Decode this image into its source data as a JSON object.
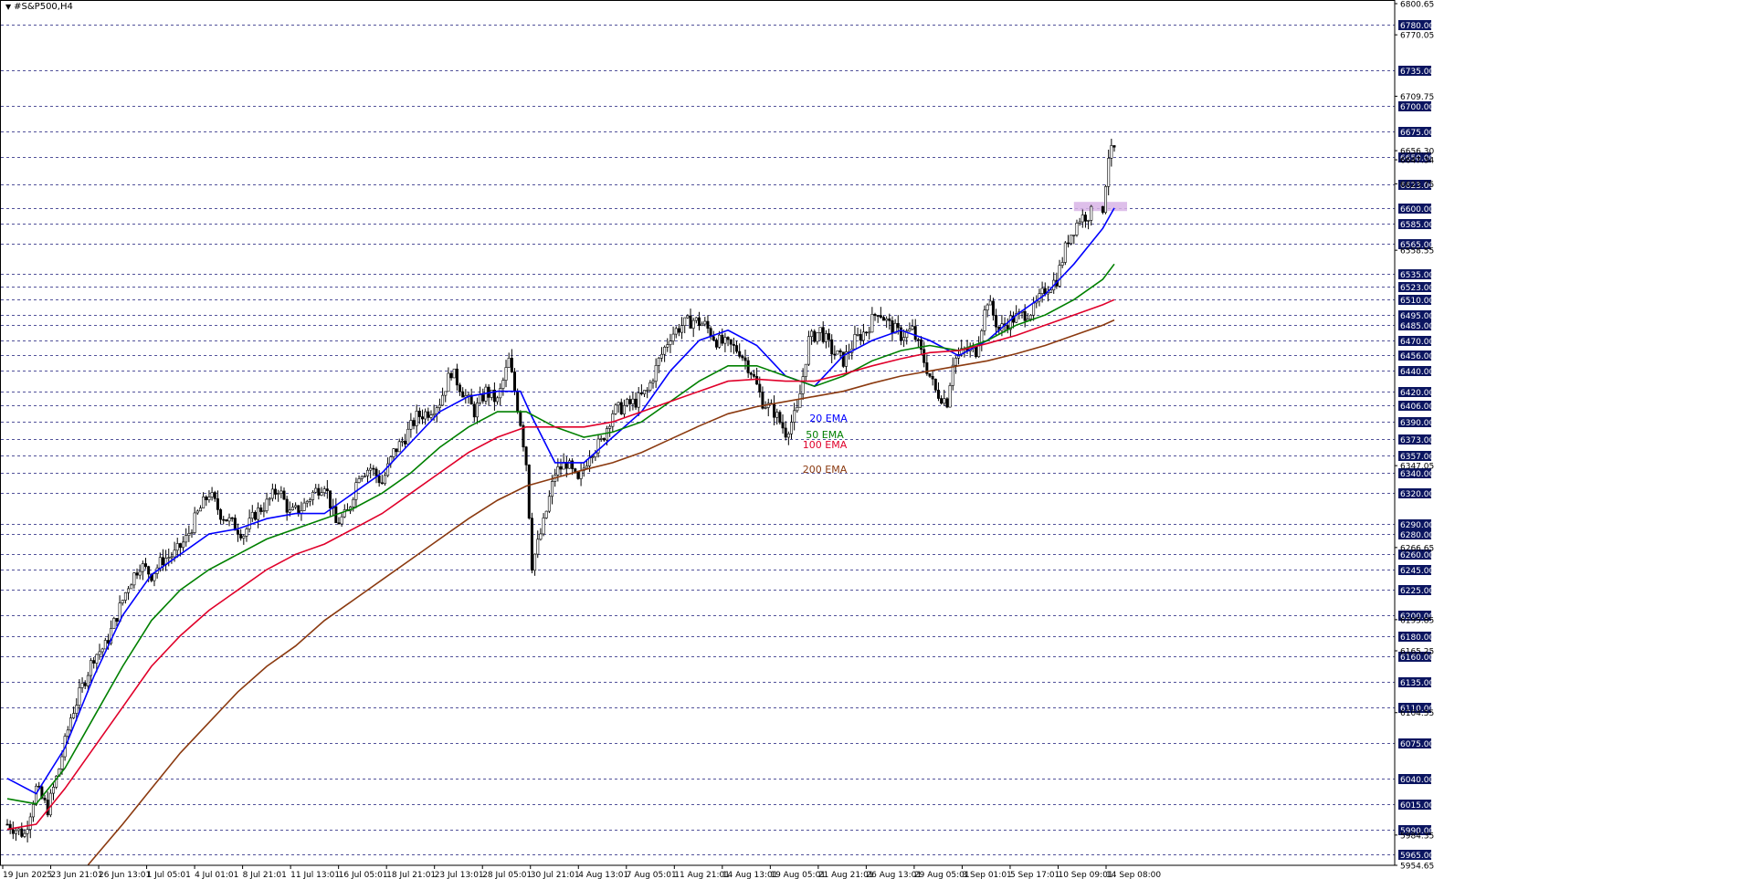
{
  "symbol": "#S&P500,H4",
  "colors": {
    "background": "#ffffff",
    "candle": "#000000",
    "grid_dashed": "#1a1a7a",
    "level_tag_bg": "#0b1560",
    "level_tag_text": "#ffffff",
    "ema20": "#0000ff",
    "ema50": "#008000",
    "ema100": "#e0002a",
    "ema200": "#8b3a10",
    "resistance_box": "#d8b4e6"
  },
  "chart_data": {
    "type": "candlestick",
    "title": "#S&P500,H4",
    "ylim": [
      5954.65,
      6800.65
    ],
    "y_axis_labels": [
      6800.65,
      6770.05,
      6709.75,
      6656.3,
      6647.34,
      6623.75,
      6558.55,
      6347.05,
      6266.65,
      6195.85,
      6165.25,
      6104.55,
      5984.35,
      5954.65
    ],
    "horizontal_levels": [
      6780,
      6735,
      6700,
      6675,
      6650,
      6623,
      6600,
      6585,
      6565,
      6535,
      6523,
      6510,
      6495,
      6485,
      6470,
      6456,
      6440,
      6420,
      6406,
      6390,
      6373,
      6357,
      6340,
      6320,
      6290,
      6280,
      6260,
      6245,
      6225,
      6200,
      6180,
      6160,
      6135,
      6110,
      6075,
      6040,
      6015,
      5990,
      5965
    ],
    "level_labels": [
      "6780.00",
      "6735.00",
      "6700.00",
      "6675.00",
      "6650.00",
      "6623.00",
      "6600.00",
      "6585.00",
      "6565.00",
      "6535.00",
      "6523.00",
      "6510.00",
      "6495.00",
      "6485.00",
      "6470.00",
      "6456.00",
      "6440.00",
      "6420.00",
      "6406.00",
      "6390.00",
      "6373.00",
      "6357.00",
      "6340.00",
      "6320.00",
      "6290.00",
      "6280.00",
      "6260.00",
      "6245.00",
      "6225.00",
      "6200.00",
      "6180.00",
      "6160.00",
      "6135.00",
      "6110.00",
      "6075.00",
      "6040.00",
      "6015.00",
      "5990.00",
      "5965.00"
    ],
    "x_tick_labels": [
      "19 Jun 2025",
      "23 Jun 21:01",
      "26 Jun 13:01",
      "1 Jul 05:01",
      "4 Jul 01:01",
      "8 Jul 21:01",
      "11 Jul 13:01",
      "16 Jul 05:01",
      "18 Jul 21:01",
      "23 Jul 13:01",
      "28 Jul 05:01",
      "30 Jul 21:01",
      "4 Aug 13:01",
      "7 Aug 05:01",
      "11 Aug 21:01",
      "14 Aug 13:01",
      "19 Aug 05:01",
      "21 Aug 21:01",
      "26 Aug 13:01",
      "29 Aug 05:01",
      "3 Sep 01:01",
      "5 Sep 17:01",
      "10 Sep 09:01",
      "14 Sep 08:00"
    ],
    "close_path": [
      [
        0,
        5995
      ],
      [
        6,
        5985
      ],
      [
        10,
        6030
      ],
      [
        14,
        6010
      ],
      [
        18,
        6050
      ],
      [
        22,
        6100
      ],
      [
        26,
        6130
      ],
      [
        30,
        6160
      ],
      [
        34,
        6170
      ],
      [
        38,
        6200
      ],
      [
        42,
        6230
      ],
      [
        46,
        6250
      ],
      [
        50,
        6240
      ],
      [
        54,
        6255
      ],
      [
        58,
        6260
      ],
      [
        62,
        6275
      ],
      [
        66,
        6300
      ],
      [
        70,
        6320
      ],
      [
        74,
        6300
      ],
      [
        78,
        6290
      ],
      [
        82,
        6280
      ],
      [
        86,
        6300
      ],
      [
        90,
        6310
      ],
      [
        94,
        6325
      ],
      [
        98,
        6300
      ],
      [
        102,
        6305
      ],
      [
        106,
        6320
      ],
      [
        110,
        6330
      ],
      [
        114,
        6290
      ],
      [
        118,
        6300
      ],
      [
        122,
        6340
      ],
      [
        126,
        6345
      ],
      [
        130,
        6330
      ],
      [
        134,
        6360
      ],
      [
        138,
        6375
      ],
      [
        142,
        6395
      ],
      [
        146,
        6400
      ],
      [
        150,
        6410
      ],
      [
        154,
        6440
      ],
      [
        158,
        6420
      ],
      [
        162,
        6400
      ],
      [
        166,
        6420
      ],
      [
        170,
        6410
      ],
      [
        174,
        6450
      ],
      [
        178,
        6390
      ],
      [
        180,
        6350
      ],
      [
        182,
        6250
      ],
      [
        186,
        6290
      ],
      [
        190,
        6340
      ],
      [
        194,
        6350
      ],
      [
        198,
        6330
      ],
      [
        202,
        6360
      ],
      [
        206,
        6370
      ],
      [
        210,
        6400
      ],
      [
        214,
        6405
      ],
      [
        218,
        6410
      ],
      [
        222,
        6420
      ],
      [
        226,
        6450
      ],
      [
        230,
        6475
      ],
      [
        234,
        6485
      ],
      [
        238,
        6490
      ],
      [
        242,
        6485
      ],
      [
        246,
        6470
      ],
      [
        250,
        6465
      ],
      [
        254,
        6460
      ],
      [
        258,
        6440
      ],
      [
        262,
        6410
      ],
      [
        266,
        6400
      ],
      [
        270,
        6380
      ],
      [
        274,
        6400
      ],
      [
        278,
        6470
      ],
      [
        282,
        6480
      ],
      [
        286,
        6460
      ],
      [
        290,
        6450
      ],
      [
        294,
        6470
      ],
      [
        298,
        6480
      ],
      [
        302,
        6500
      ],
      [
        306,
        6485
      ],
      [
        310,
        6475
      ],
      [
        314,
        6480
      ],
      [
        318,
        6450
      ],
      [
        322,
        6420
      ],
      [
        326,
        6410
      ],
      [
        328,
        6450
      ],
      [
        332,
        6460
      ],
      [
        336,
        6460
      ],
      [
        340,
        6510
      ],
      [
        344,
        6480
      ],
      [
        348,
        6490
      ],
      [
        352,
        6495
      ],
      [
        356,
        6500
      ],
      [
        360,
        6520
      ],
      [
        364,
        6530
      ],
      [
        368,
        6570
      ],
      [
        372,
        6590
      ],
      [
        376,
        6595
      ],
      [
        378,
        6598
      ],
      [
        380,
        6600
      ],
      [
        382,
        6652
      ],
      [
        384,
        6657
      ]
    ],
    "series": [
      {
        "name": "20 EMA",
        "values": [
          [
            0,
            6040
          ],
          [
            10,
            6025
          ],
          [
            20,
            6070
          ],
          [
            30,
            6140
          ],
          [
            40,
            6200
          ],
          [
            50,
            6240
          ],
          [
            60,
            6260
          ],
          [
            70,
            6280
          ],
          [
            80,
            6285
          ],
          [
            90,
            6295
          ],
          [
            100,
            6300
          ],
          [
            110,
            6300
          ],
          [
            120,
            6320
          ],
          [
            130,
            6340
          ],
          [
            140,
            6370
          ],
          [
            150,
            6400
          ],
          [
            160,
            6415
          ],
          [
            170,
            6420
          ],
          [
            178,
            6420
          ],
          [
            182,
            6395
          ],
          [
            190,
            6350
          ],
          [
            200,
            6350
          ],
          [
            210,
            6375
          ],
          [
            220,
            6400
          ],
          [
            230,
            6440
          ],
          [
            240,
            6470
          ],
          [
            250,
            6480
          ],
          [
            260,
            6465
          ],
          [
            270,
            6435
          ],
          [
            280,
            6425
          ],
          [
            290,
            6455
          ],
          [
            300,
            6470
          ],
          [
            310,
            6480
          ],
          [
            320,
            6470
          ],
          [
            330,
            6455
          ],
          [
            340,
            6470
          ],
          [
            350,
            6495
          ],
          [
            360,
            6515
          ],
          [
            370,
            6545
          ],
          [
            380,
            6580
          ],
          [
            384,
            6600
          ]
        ]
      },
      {
        "name": "50 EMA",
        "values": [
          [
            0,
            6020
          ],
          [
            10,
            6015
          ],
          [
            20,
            6050
          ],
          [
            30,
            6100
          ],
          [
            40,
            6150
          ],
          [
            50,
            6195
          ],
          [
            60,
            6225
          ],
          [
            70,
            6245
          ],
          [
            80,
            6260
          ],
          [
            90,
            6275
          ],
          [
            100,
            6285
          ],
          [
            110,
            6295
          ],
          [
            120,
            6305
          ],
          [
            130,
            6320
          ],
          [
            140,
            6340
          ],
          [
            150,
            6365
          ],
          [
            160,
            6385
          ],
          [
            170,
            6400
          ],
          [
            180,
            6400
          ],
          [
            190,
            6385
          ],
          [
            200,
            6375
          ],
          [
            210,
            6380
          ],
          [
            220,
            6390
          ],
          [
            230,
            6410
          ],
          [
            240,
            6430
          ],
          [
            250,
            6445
          ],
          [
            260,
            6445
          ],
          [
            270,
            6435
          ],
          [
            280,
            6425
          ],
          [
            290,
            6435
          ],
          [
            300,
            6450
          ],
          [
            310,
            6460
          ],
          [
            320,
            6465
          ],
          [
            330,
            6460
          ],
          [
            340,
            6470
          ],
          [
            350,
            6485
          ],
          [
            360,
            6495
          ],
          [
            370,
            6510
          ],
          [
            380,
            6530
          ],
          [
            384,
            6545
          ]
        ]
      },
      {
        "name": "100 EMA",
        "values": [
          [
            0,
            5990
          ],
          [
            10,
            5995
          ],
          [
            20,
            6030
          ],
          [
            30,
            6070
          ],
          [
            40,
            6110
          ],
          [
            50,
            6150
          ],
          [
            60,
            6180
          ],
          [
            70,
            6205
          ],
          [
            80,
            6225
          ],
          [
            90,
            6245
          ],
          [
            100,
            6260
          ],
          [
            110,
            6270
          ],
          [
            120,
            6285
          ],
          [
            130,
            6300
          ],
          [
            140,
            6320
          ],
          [
            150,
            6340
          ],
          [
            160,
            6360
          ],
          [
            170,
            6375
          ],
          [
            180,
            6385
          ],
          [
            190,
            6385
          ],
          [
            200,
            6385
          ],
          [
            210,
            6390
          ],
          [
            220,
            6400
          ],
          [
            230,
            6410
          ],
          [
            240,
            6420
          ],
          [
            250,
            6430
          ],
          [
            260,
            6432
          ],
          [
            270,
            6430
          ],
          [
            280,
            6430
          ],
          [
            290,
            6437
          ],
          [
            300,
            6445
          ],
          [
            310,
            6452
          ],
          [
            320,
            6458
          ],
          [
            330,
            6460
          ],
          [
            340,
            6467
          ],
          [
            350,
            6475
          ],
          [
            360,
            6485
          ],
          [
            370,
            6495
          ],
          [
            380,
            6505
          ],
          [
            384,
            6510
          ]
        ]
      },
      {
        "name": "200 EMA",
        "values": [
          [
            28,
            5955
          ],
          [
            40,
            5995
          ],
          [
            50,
            6030
          ],
          [
            60,
            6065
          ],
          [
            70,
            6095
          ],
          [
            80,
            6125
          ],
          [
            90,
            6150
          ],
          [
            100,
            6170
          ],
          [
            110,
            6195
          ],
          [
            120,
            6215
          ],
          [
            130,
            6235
          ],
          [
            140,
            6255
          ],
          [
            150,
            6275
          ],
          [
            160,
            6295
          ],
          [
            170,
            6313
          ],
          [
            180,
            6327
          ],
          [
            190,
            6335
          ],
          [
            200,
            6343
          ],
          [
            210,
            6350
          ],
          [
            220,
            6360
          ],
          [
            230,
            6373
          ],
          [
            240,
            6386
          ],
          [
            250,
            6398
          ],
          [
            260,
            6405
          ],
          [
            270,
            6410
          ],
          [
            280,
            6415
          ],
          [
            290,
            6420
          ],
          [
            300,
            6428
          ],
          [
            310,
            6435
          ],
          [
            320,
            6440
          ],
          [
            330,
            6445
          ],
          [
            340,
            6450
          ],
          [
            350,
            6457
          ],
          [
            360,
            6465
          ],
          [
            370,
            6475
          ],
          [
            380,
            6485
          ],
          [
            384,
            6490
          ]
        ]
      }
    ],
    "annotations": [
      {
        "text": "20 EMA",
        "series": "20 EMA"
      },
      {
        "text": "50 EMA",
        "series": "50 EMA"
      },
      {
        "text": "100 EMA",
        "series": "100 EMA"
      },
      {
        "text": "200 EMA",
        "series": "200 EMA"
      }
    ],
    "resistance_zone": {
      "from": 6597,
      "to": 6606
    }
  }
}
